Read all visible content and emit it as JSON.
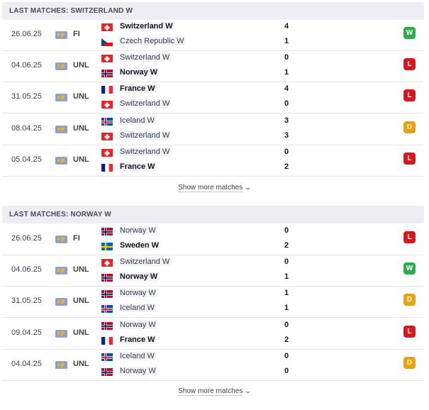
{
  "sections": [
    {
      "title": "LAST MATCHES: SWITZERLAND W",
      "matches": [
        {
          "date": "26.06.25",
          "competition": "FI",
          "home": {
            "name": "Switzerland W",
            "flag": "switzerland",
            "bold": true
          },
          "away": {
            "name": "Czech Republic W",
            "flag": "czech",
            "bold": false
          },
          "home_score": "4",
          "away_score": "1",
          "result": "W",
          "result_color": "#2aad4d"
        },
        {
          "date": "04.06.25",
          "competition": "UNL",
          "home": {
            "name": "Switzerland W",
            "flag": "switzerland",
            "bold": false
          },
          "away": {
            "name": "Norway W",
            "flag": "norway",
            "bold": true
          },
          "home_score": "0",
          "away_score": "1",
          "result": "L",
          "result_color": "#d6171d"
        },
        {
          "date": "31.05.25",
          "competition": "UNL",
          "home": {
            "name": "France W",
            "flag": "france",
            "bold": true
          },
          "away": {
            "name": "Switzerland W",
            "flag": "switzerland",
            "bold": false
          },
          "home_score": "4",
          "away_score": "0",
          "result": "L",
          "result_color": "#d6171d"
        },
        {
          "date": "08.04.25",
          "competition": "UNL",
          "home": {
            "name": "Iceland W",
            "flag": "iceland",
            "bold": false
          },
          "away": {
            "name": "Switzerland W",
            "flag": "switzerland",
            "bold": false
          },
          "home_score": "3",
          "away_score": "3",
          "result": "D",
          "result_color": "#e9a10f"
        },
        {
          "date": "05.04.25",
          "competition": "UNL",
          "home": {
            "name": "Switzerland W",
            "flag": "switzerland",
            "bold": false
          },
          "away": {
            "name": "France W",
            "flag": "france",
            "bold": true
          },
          "home_score": "0",
          "away_score": "2",
          "result": "L",
          "result_color": "#d6171d"
        }
      ],
      "show_more": "Show more matches"
    },
    {
      "title": "LAST MATCHES: NORWAY W",
      "matches": [
        {
          "date": "26.06.25",
          "competition": "FI",
          "home": {
            "name": "Norway W",
            "flag": "norway",
            "bold": false
          },
          "away": {
            "name": "Sweden W",
            "flag": "sweden",
            "bold": true
          },
          "home_score": "0",
          "away_score": "2",
          "result": "L",
          "result_color": "#d6171d"
        },
        {
          "date": "04.06.25",
          "competition": "UNL",
          "home": {
            "name": "Switzerland W",
            "flag": "switzerland",
            "bold": false
          },
          "away": {
            "name": "Norway W",
            "flag": "norway",
            "bold": true
          },
          "home_score": "0",
          "away_score": "1",
          "result": "W",
          "result_color": "#2aad4d"
        },
        {
          "date": "31.05.25",
          "competition": "UNL",
          "home": {
            "name": "Norway W",
            "flag": "norway",
            "bold": false
          },
          "away": {
            "name": "Iceland W",
            "flag": "iceland",
            "bold": false
          },
          "home_score": "1",
          "away_score": "1",
          "result": "D",
          "result_color": "#e9a10f"
        },
        {
          "date": "09.04.25",
          "competition": "UNL",
          "home": {
            "name": "Norway W",
            "flag": "norway",
            "bold": false
          },
          "away": {
            "name": "France W",
            "flag": "france",
            "bold": true
          },
          "home_score": "0",
          "away_score": "2",
          "result": "L",
          "result_color": "#d6171d"
        },
        {
          "date": "04.04.25",
          "competition": "UNL",
          "home": {
            "name": "Iceland W",
            "flag": "iceland",
            "bold": false
          },
          "away": {
            "name": "Norway W",
            "flag": "norway",
            "bold": false
          },
          "home_score": "0",
          "away_score": "0",
          "result": "D",
          "result_color": "#e9a10f"
        }
      ],
      "show_more": "Show more matches"
    }
  ]
}
